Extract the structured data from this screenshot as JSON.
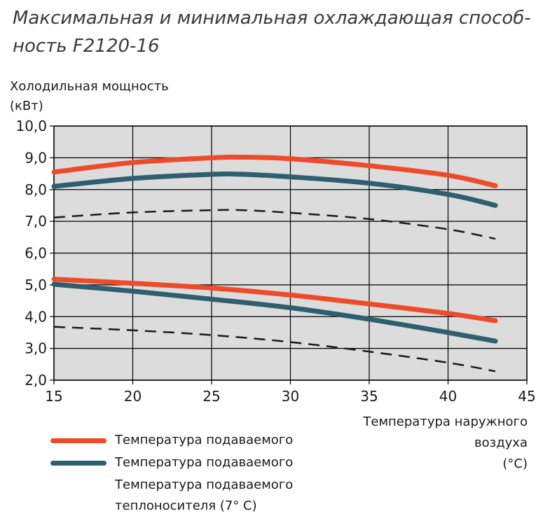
{
  "title": {
    "line1": "Максимальная и минимальная охлаждающая способ-",
    "line2": "ность F2120-16"
  },
  "chart_data": {
    "type": "line",
    "ylabel_line1": "Холодильная мощность",
    "ylabel_line2": "(кВт)",
    "xlabel_line1": "Температура наружного",
    "xlabel_line2": "воздуха",
    "xlabel_line3": "(°C)",
    "xlim": [
      15,
      45
    ],
    "ylim": [
      2.0,
      10.0
    ],
    "xticks": [
      "15",
      "20",
      "25",
      "30",
      "35",
      "40",
      "45"
    ],
    "yticks": [
      "2,0",
      "3,0",
      "4,0",
      "5,0",
      "6,0",
      "7,0",
      "8,0",
      "9,0",
      "10,0"
    ],
    "grid": true,
    "colors": {
      "red": "#ee4b2b",
      "teal": "#2f5f6f",
      "dash": "#1a1a1a",
      "plot_bg": "#dcdcdc",
      "grid": "#000000"
    },
    "series": [
      {
        "name": "Температура подаваемого",
        "group": "max",
        "style": "red",
        "x": [
          15,
          20,
          25,
          27,
          30,
          35,
          40,
          43
        ],
        "y": [
          8.55,
          8.85,
          9.0,
          9.02,
          8.97,
          8.75,
          8.45,
          8.12
        ]
      },
      {
        "name": "Температура подаваемого",
        "group": "max",
        "style": "teal",
        "x": [
          15,
          20,
          25,
          27,
          30,
          35,
          40,
          43
        ],
        "y": [
          8.1,
          8.35,
          8.48,
          8.48,
          8.4,
          8.2,
          7.85,
          7.5
        ]
      },
      {
        "name": "Температура подаваемого теплоносителя (7° C)",
        "group": "max",
        "style": "dash",
        "x": [
          15,
          20,
          25,
          27,
          30,
          35,
          40,
          43
        ],
        "y": [
          7.12,
          7.28,
          7.35,
          7.35,
          7.27,
          7.07,
          6.75,
          6.45
        ]
      },
      {
        "name": "Температура подаваемого",
        "group": "min",
        "style": "red",
        "x": [
          15,
          20,
          25,
          30,
          35,
          40,
          43
        ],
        "y": [
          5.18,
          5.05,
          4.9,
          4.68,
          4.4,
          4.1,
          3.87
        ]
      },
      {
        "name": "Температура подаваемого",
        "group": "min",
        "style": "teal",
        "x": [
          15,
          20,
          25,
          30,
          35,
          40,
          43
        ],
        "y": [
          5.02,
          4.8,
          4.55,
          4.28,
          3.92,
          3.5,
          3.23
        ]
      },
      {
        "name": "Температура подаваемого теплоносителя (7° C)",
        "group": "min",
        "style": "dash",
        "x": [
          15,
          20,
          25,
          30,
          35,
          40,
          43
        ],
        "y": [
          3.68,
          3.57,
          3.42,
          3.2,
          2.9,
          2.55,
          2.28
        ]
      }
    ]
  },
  "legend": {
    "item1": "Температура подаваемого",
    "item2": "Температура подаваемого",
    "item3_line1": "Температура подаваемого",
    "item3_line2": "теплоносителя (7° C)"
  }
}
